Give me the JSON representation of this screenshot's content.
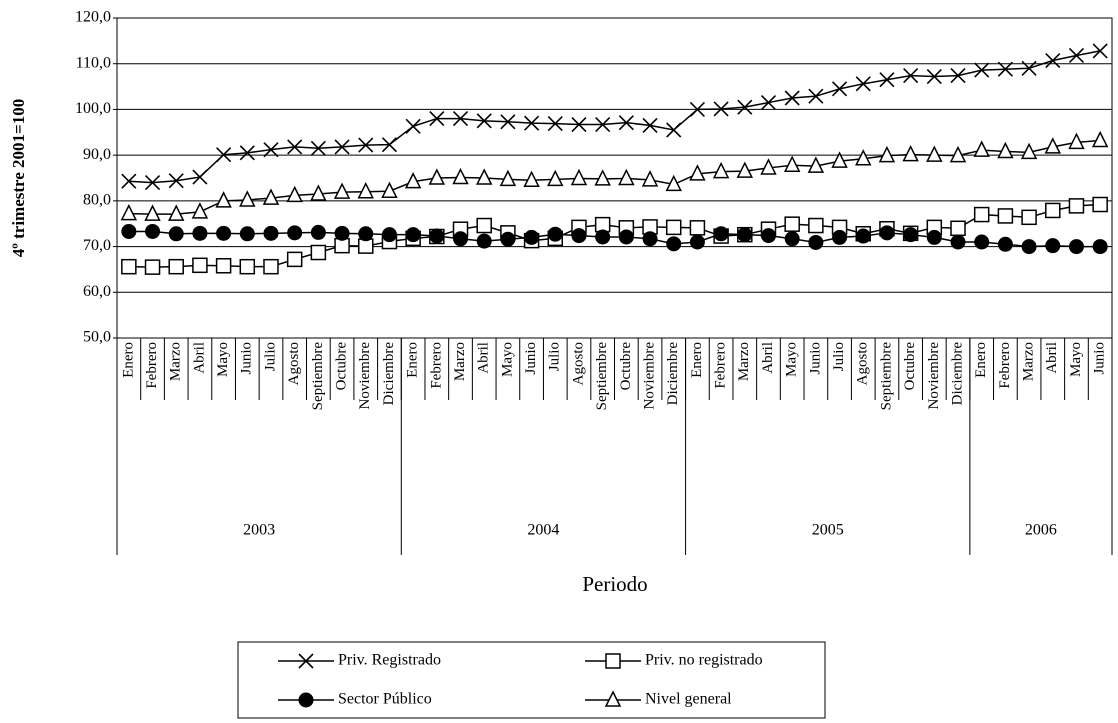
{
  "chart_data": {
    "type": "line",
    "y_label": "4º trimestre 2001=100",
    "x_label": "Periodo",
    "categories": [
      "Enero",
      "Febrero",
      "Marzo",
      "Abril",
      "Mayo",
      "Junio",
      "Julio",
      "Agosto",
      "Septiembre",
      "Octubre",
      "Noviembre",
      "Diciembre",
      "Enero",
      "Febrero",
      "Marzo",
      "Abril",
      "Mayo",
      "Junio",
      "Julio",
      "Agosto",
      "Septiembre",
      "Octubre",
      "Noviembre",
      "Diciembre",
      "Enero",
      "Febrero",
      "Marzo",
      "Abril",
      "Mayo",
      "Junio",
      "Julio",
      "Agosto",
      "Septiembre",
      "Octubre",
      "Noviembre",
      "Diciembre",
      "Enero",
      "Febrero",
      "Marzo",
      "Abril",
      "Mayo",
      "Junio"
    ],
    "groups": [
      {
        "label": "2003",
        "span": 12
      },
      {
        "label": "2004",
        "span": 12
      },
      {
        "label": "2005",
        "span": 12
      },
      {
        "label": "2006",
        "span": 6
      }
    ],
    "ylim": [
      50,
      120
    ],
    "yticks": [
      {
        "value": 50,
        "label": "50,0"
      },
      {
        "value": 60,
        "label": "60,0"
      },
      {
        "value": 70,
        "label": "70,0"
      },
      {
        "value": 80,
        "label": "80,0"
      },
      {
        "value": 90,
        "label": "90,0"
      },
      {
        "value": 100,
        "label": "100,0"
      },
      {
        "value": 110,
        "label": "110,0"
      },
      {
        "value": 120,
        "label": "120,0"
      }
    ],
    "grid": true,
    "legend": "bottom",
    "series": [
      {
        "name": "Priv. Registrado",
        "color": "#000000",
        "marker": "x",
        "values": [
          84.3,
          84.0,
          84.4,
          85.2,
          90.1,
          90.5,
          91.2,
          91.8,
          91.5,
          91.8,
          92.2,
          92.3,
          96.3,
          98.0,
          98.0,
          97.5,
          97.3,
          97.0,
          96.9,
          96.7,
          96.7,
          97.1,
          96.5,
          95.5,
          100.0,
          100.1,
          100.5,
          101.5,
          102.5,
          102.9,
          104.5,
          105.6,
          106.5,
          107.4,
          107.2,
          107.4,
          108.6,
          108.8,
          109.0,
          110.7,
          111.8,
          112.8
        ]
      },
      {
        "name": "Priv. no registrado",
        "color": "#000000",
        "marker": "square",
        "values": [
          65.6,
          65.5,
          65.6,
          65.9,
          65.8,
          65.6,
          65.6,
          67.2,
          68.7,
          70.2,
          70.1,
          71.1,
          71.8,
          72.2,
          73.8,
          74.6,
          73.0,
          71.3,
          71.8,
          74.2,
          74.8,
          74.1,
          74.3,
          74.2,
          74.1,
          72.3,
          72.6,
          73.8,
          74.9,
          74.6,
          74.2,
          72.8,
          73.9,
          72.9,
          74.2,
          74.0,
          77.0,
          76.7,
          76.4,
          77.9,
          78.9,
          79.2
        ]
      },
      {
        "name": "Sector Público",
        "color": "#000000",
        "marker": "circle",
        "values": [
          73.3,
          73.3,
          72.8,
          72.9,
          72.9,
          72.8,
          72.9,
          73.0,
          73.1,
          72.9,
          72.8,
          72.6,
          72.6,
          72.3,
          71.7,
          71.2,
          71.6,
          72.0,
          72.7,
          72.4,
          72.1,
          72.1,
          71.7,
          70.6,
          71.0,
          72.8,
          72.6,
          72.4,
          71.7,
          70.9,
          72.0,
          72.3,
          73.0,
          72.6,
          72.0,
          71.0,
          71.0,
          70.5,
          70.0,
          70.2,
          70.0,
          70.0
        ]
      },
      {
        "name": "Nivel general",
        "color": "#000000",
        "marker": "triangle",
        "values": [
          77.2,
          77.1,
          77.1,
          77.6,
          80.0,
          80.2,
          80.6,
          81.2,
          81.5,
          81.9,
          82.0,
          82.1,
          84.2,
          85.0,
          85.1,
          85.0,
          84.7,
          84.5,
          84.7,
          84.9,
          84.8,
          84.9,
          84.6,
          83.6,
          85.9,
          86.4,
          86.5,
          87.2,
          87.8,
          87.6,
          88.7,
          89.2,
          89.9,
          90.1,
          90.0,
          89.9,
          91.1,
          90.8,
          90.6,
          91.8,
          92.8,
          93.2
        ]
      }
    ]
  }
}
